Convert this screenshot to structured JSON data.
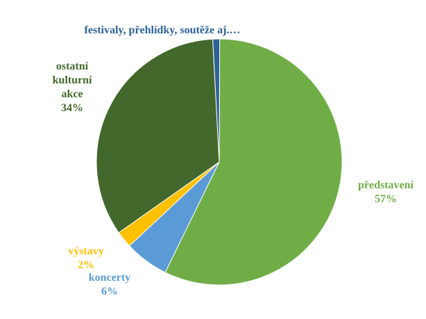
{
  "colors": {
    "predstaveni": "#70AD47",
    "koncerty": "#5B9BD5",
    "vystavy": "#FFC000",
    "ostatni": "#43682B",
    "festivaly": "#2E6299"
  },
  "chart_data": {
    "type": "pie",
    "title": "",
    "slices": [
      {
        "key": "predstaveni",
        "label": "představení",
        "percent_label": "57%",
        "value": 57.2
      },
      {
        "key": "koncerty",
        "label": "koncerty",
        "percent_label": "6%",
        "value": 5.8
      },
      {
        "key": "vystavy",
        "label": "výstavy",
        "percent_label": "2%",
        "value": 2.2
      },
      {
        "key": "ostatni",
        "label_lines": [
          "ostatní",
          "kulturní",
          "akce"
        ],
        "percent_label": "34%",
        "value": 33.9
      },
      {
        "key": "festivaly",
        "label": "festivaly, přehlídky, soutěže aj.…",
        "percent_label": "",
        "value": 0.9
      }
    ]
  }
}
